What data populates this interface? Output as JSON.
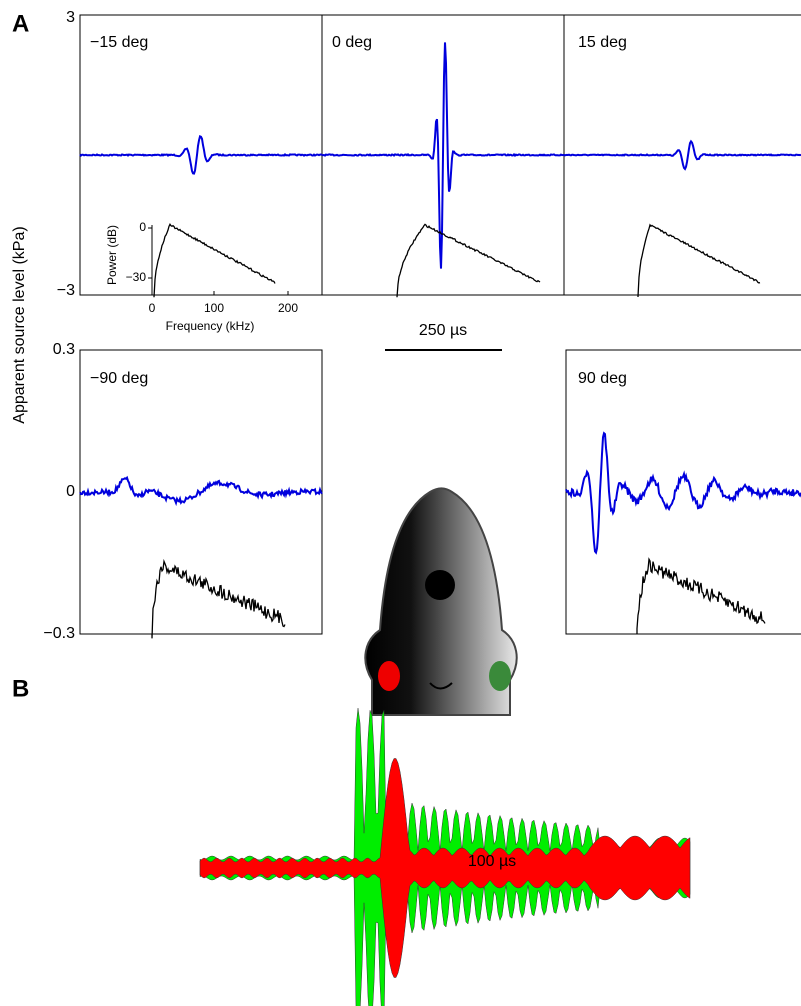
{
  "figure": {
    "panel_labels": [
      "A",
      "B"
    ],
    "y_axis_label": "Apparent source level (kPa)",
    "top_row": {
      "ticks": [
        "3",
        "−3"
      ],
      "angles": [
        "−15 deg",
        "0 deg",
        "15 deg"
      ]
    },
    "bottom_row": {
      "ticks": [
        "0.3",
        "0",
        "−0.3"
      ],
      "angles": [
        "−90 deg",
        "90 deg"
      ]
    },
    "inset": {
      "y_label": "Power (dB)",
      "y_ticks": [
        "0",
        "−30"
      ],
      "x_label": "Frequency (kHz)",
      "x_ticks": [
        "0",
        "100",
        "200"
      ]
    },
    "scale_bars": [
      "250 µs",
      "100 µs"
    ]
  }
}
